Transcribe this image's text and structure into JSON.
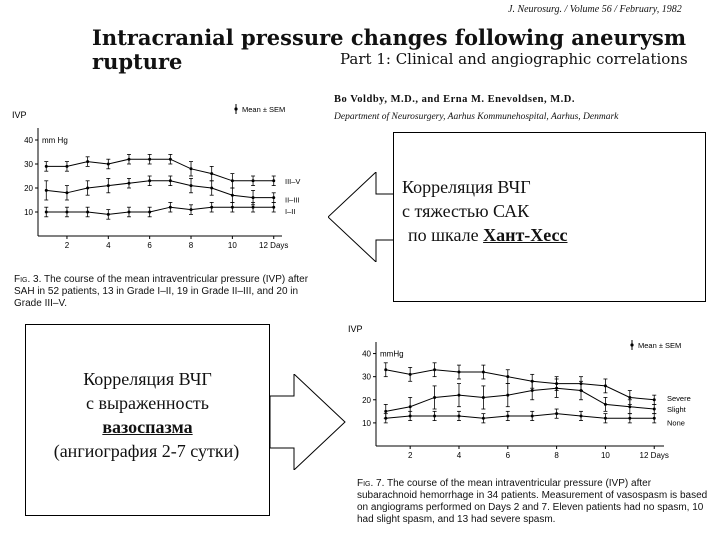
{
  "header": {
    "journal": "J. Neurosurg. / Volume 56 / February, 1982",
    "title_line1": "Intracranial pressure changes following aneurysm",
    "title_line2": "rupture",
    "part": "Part 1: Clinical and angiographic correlations",
    "authors": "Bo Voldby, M.D., and Erna M. Enevoldsen, M.D.",
    "department": "Department of Neurosurgery, Aarhus Kommunehospital, Aarhus, Denmark"
  },
  "callout_top": {
    "line1": "Корреляция ВЧГ",
    "line2": "с тяжестью САК",
    "line3_prefix": "по шкале ",
    "line3_emph": "Хант-Хесс"
  },
  "callout_bottom": {
    "line1": "Корреляция ВЧГ",
    "line2": "с выраженность",
    "line3_emph": "вазоспазма",
    "line4": "(ангиография 2-7 сутки)"
  },
  "figures": {
    "fig3_caption_label": "Fig. 3.",
    "fig3_caption": "The course of the mean intraventricular pressure (IVP) after SAH in 52 patients, 13 in Grade I–II, 19 in Grade II–III, and 20 in Grade III–V.",
    "fig7_caption_label": "Fig. 7.",
    "fig7_caption": "The course of the mean intraventricular pressure (IVP) after subarachnoid hemorrhage in 34 patients. Measurement of vasospasm is based on angiograms performed on Days 2 and 7. Eleven patients had no spasm, 10 had slight spasm, and 13 had severe spasm."
  },
  "chart_data": [
    {
      "type": "line",
      "ylabel": "IVP",
      "unit": "mm Hg",
      "legend": "Mean ± SEM",
      "legend_position": "top-right",
      "x": [
        1,
        2,
        3,
        4,
        5,
        6,
        7,
        8,
        9,
        10,
        11,
        12
      ],
      "x_tick_labels": [
        "2",
        "4",
        "6",
        "8",
        "10",
        "12 Days"
      ],
      "x_ticks": [
        2,
        4,
        6,
        8,
        10,
        12
      ],
      "y_ticks": [
        10,
        20,
        30,
        40
      ],
      "xlim": [
        0.6,
        12.4
      ],
      "ylim": [
        0,
        45
      ],
      "series": [
        {
          "name": "III–V",
          "values": [
            29,
            29,
            31,
            30,
            32,
            32,
            32,
            28,
            26,
            23,
            23,
            23
          ],
          "err": [
            2,
            2,
            2,
            2,
            2,
            2,
            2,
            3,
            3,
            3,
            2,
            2
          ]
        },
        {
          "name": "II–III",
          "values": [
            19,
            18,
            20,
            21,
            22,
            23,
            23,
            21,
            20,
            17,
            16,
            16
          ],
          "err": [
            4,
            3,
            3,
            3,
            2,
            2,
            2,
            3,
            3,
            3,
            3,
            2
          ]
        },
        {
          "name": "I–II",
          "values": [
            10,
            10,
            10,
            9,
            10,
            10,
            12,
            11,
            12,
            12,
            12,
            12
          ],
          "err": [
            2,
            2,
            2,
            2,
            2,
            2,
            2,
            2,
            2,
            2,
            2,
            2
          ]
        }
      ]
    },
    {
      "type": "line",
      "ylabel": "IVP",
      "unit": "mmHg",
      "legend": "Mean ± SEM",
      "legend_position": "top-right",
      "x": [
        1,
        2,
        3,
        4,
        5,
        6,
        7,
        8,
        9,
        10,
        11,
        12
      ],
      "x_tick_labels": [
        "2",
        "4",
        "6",
        "8",
        "10",
        "12 Days"
      ],
      "x_ticks": [
        2,
        4,
        6,
        8,
        10,
        12
      ],
      "y_ticks": [
        10,
        20,
        30,
        40
      ],
      "xlim": [
        0.6,
        12.4
      ],
      "ylim": [
        0,
        45
      ],
      "series": [
        {
          "name": "Severe",
          "values": [
            33,
            31,
            33,
            32,
            32,
            30,
            28,
            27,
            27,
            26,
            21,
            20
          ],
          "err": [
            3,
            3,
            3,
            3,
            3,
            3,
            3,
            3,
            3,
            3,
            3,
            2
          ]
        },
        {
          "name": "Slight",
          "values": [
            15,
            17,
            21,
            22,
            21,
            22,
            24,
            25,
            24,
            18,
            17,
            16
          ],
          "err": [
            3,
            4,
            5,
            5,
            5,
            5,
            4,
            4,
            4,
            3,
            3,
            2
          ]
        },
        {
          "name": "None",
          "values": [
            12,
            13,
            13,
            13,
            12,
            13,
            13,
            14,
            13,
            12,
            12,
            12
          ],
          "err": [
            2,
            2,
            2,
            2,
            2,
            2,
            2,
            2,
            2,
            2,
            2,
            2
          ]
        }
      ]
    }
  ]
}
